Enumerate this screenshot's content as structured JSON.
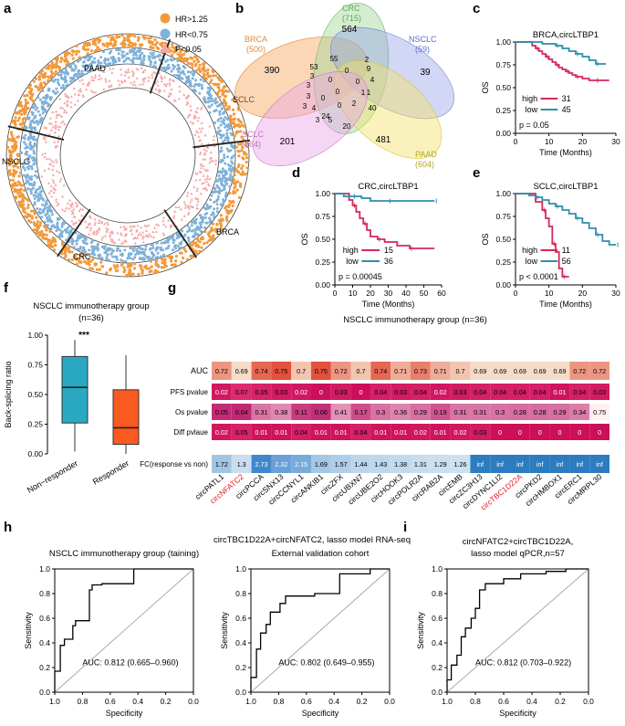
{
  "panels": {
    "a": "a",
    "b": "b",
    "c": "c",
    "d": "d",
    "e": "e",
    "f": "f",
    "g": "g",
    "h": "h",
    "i": "i"
  },
  "panel_a": {
    "legend": [
      "HR>1.25",
      "HR<0.75",
      "P<0.05"
    ],
    "colors": {
      "hr_high": "#f29a3b",
      "hr_low": "#7fb1d9",
      "p": "#f5a6a6"
    },
    "sectors": [
      "PAAD",
      "SCLC",
      "BRCA",
      "CRC",
      "NSCLC"
    ]
  },
  "panel_b": {
    "sets": [
      {
        "name": "BRCA",
        "n": "(500)",
        "color": "#f6a65e"
      },
      {
        "name": "CRC",
        "n": "(715)",
        "color": "#9fd79a"
      },
      {
        "name": "NSCLC",
        "n": "(59)",
        "color": "#7f8fe0"
      },
      {
        "name": "PAAD",
        "n": "(604)",
        "color": "#f3e36b"
      },
      {
        "name": "SCLC",
        "n": "(264)",
        "color": "#e8a3e6"
      }
    ],
    "counts": [
      "390",
      "564",
      "39",
      "481",
      "201",
      "53",
      "55",
      "2",
      "9",
      "0",
      "3",
      "3",
      "24",
      "20",
      "40",
      "3",
      "4",
      "3",
      "5",
      "1",
      "0",
      "0",
      "0",
      "1",
      "2",
      "0",
      "0",
      "3",
      "4"
    ]
  },
  "chart_data": [
    {
      "type": "line",
      "panel": "c",
      "title": "BRCA,circLTBP1",
      "xlabel": "Time (Months)",
      "ylabel": "OS",
      "xlim": [
        0,
        30
      ],
      "xticks": [
        0,
        10,
        20,
        30
      ],
      "ylim": [
        0,
        1
      ],
      "yticks": [
        "0.00",
        "0.25",
        "0.50",
        "0.75",
        "1.00"
      ],
      "pvalue": "p = 0.05",
      "series": [
        {
          "name": "high",
          "n": "31",
          "color": "#d62859",
          "x": [
            0,
            5,
            6,
            7,
            8,
            9,
            10,
            11,
            12,
            13,
            14,
            15,
            16,
            17,
            18,
            20,
            22,
            24,
            26,
            28
          ],
          "y": [
            1,
            0.96,
            0.93,
            0.9,
            0.87,
            0.84,
            0.81,
            0.78,
            0.75,
            0.72,
            0.7,
            0.68,
            0.66,
            0.64,
            0.62,
            0.6,
            0.58,
            0.58,
            0.58,
            0.58
          ]
        },
        {
          "name": "low",
          "n": "45",
          "color": "#2e8fa8",
          "x": [
            0,
            8,
            12,
            14,
            16,
            18,
            20,
            22,
            24,
            26,
            27
          ],
          "y": [
            1,
            0.98,
            0.96,
            0.93,
            0.9,
            0.87,
            0.84,
            0.8,
            0.76,
            0.76,
            0.76
          ]
        }
      ]
    },
    {
      "type": "line",
      "panel": "d",
      "title": "CRC,circLTBP1",
      "xlabel": "Time (Months)",
      "ylabel": "OS",
      "xlim": [
        0,
        60
      ],
      "xticks": [
        0,
        10,
        20,
        30,
        40,
        50,
        60
      ],
      "ylim": [
        0,
        1
      ],
      "yticks": [
        "0.00",
        "0.25",
        "0.50",
        "0.75",
        "1.00"
      ],
      "pvalue": "p = 0.00045",
      "series": [
        {
          "name": "high",
          "n": "15",
          "color": "#d62859",
          "x": [
            0,
            8,
            10,
            12,
            14,
            16,
            18,
            20,
            24,
            28,
            35,
            42,
            56
          ],
          "y": [
            1,
            0.93,
            0.87,
            0.8,
            0.73,
            0.67,
            0.6,
            0.53,
            0.5,
            0.47,
            0.43,
            0.4,
            0.4
          ]
        },
        {
          "name": "low",
          "n": "36",
          "color": "#2e8fa8",
          "x": [
            0,
            5,
            10,
            15,
            20,
            30,
            40,
            50,
            56
          ],
          "y": [
            1,
            0.97,
            0.97,
            0.95,
            0.92,
            0.92,
            0.92,
            0.92,
            0.92
          ]
        }
      ]
    },
    {
      "type": "line",
      "panel": "e",
      "title": "SCLC,circLTBP1",
      "xlabel": "Time (Months)",
      "ylabel": "OS",
      "xlim": [
        0,
        30
      ],
      "xticks": [
        0,
        10,
        20,
        30
      ],
      "ylim": [
        0,
        1
      ],
      "yticks": [
        "0.00",
        "0.25",
        "0.50",
        "0.75",
        "1.00"
      ],
      "pvalue": "p < 0.0001",
      "series": [
        {
          "name": "high",
          "n": "11",
          "color": "#d62859",
          "x": [
            0,
            6,
            8,
            9,
            10,
            11,
            12,
            13,
            14,
            16
          ],
          "y": [
            1,
            0.91,
            0.82,
            0.73,
            0.64,
            0.45,
            0.36,
            0.18,
            0.09,
            0.09
          ]
        },
        {
          "name": "low",
          "n": "56",
          "color": "#2e8fa8",
          "x": [
            0,
            4,
            6,
            8,
            10,
            12,
            14,
            16,
            18,
            20,
            22,
            24,
            26,
            28,
            30
          ],
          "y": [
            1,
            0.98,
            0.96,
            0.93,
            0.89,
            0.86,
            0.82,
            0.78,
            0.73,
            0.68,
            0.62,
            0.55,
            0.48,
            0.44,
            0.44
          ]
        }
      ]
    },
    {
      "type": "box",
      "panel": "f",
      "title": "NSCLC immunotherapy group",
      "subtitle": "(n=36)",
      "ylabel": "Back-splicing ratio",
      "significance": "***",
      "ylim": [
        0,
        1
      ],
      "yticks": [
        "0.00",
        "0.25",
        "0.50",
        "0.75",
        "1.00"
      ],
      "categories": [
        "Non−responder",
        "Responder"
      ],
      "boxes": [
        {
          "min": 0.02,
          "q1": 0.26,
          "median": 0.56,
          "q3": 0.82,
          "max": 0.96,
          "color": "#2aa8c2"
        },
        {
          "min": 0.0,
          "q1": 0.08,
          "median": 0.22,
          "q3": 0.54,
          "max": 0.83,
          "color": "#fa5a1f"
        }
      ]
    },
    {
      "type": "heatmap",
      "panel": "g",
      "title": "NSCLC immunotherapy group (n=36)",
      "rows": [
        "AUC",
        "PFS pvalue",
        "Os pvalue",
        "Diff pvlaue",
        "FC(response vs non)"
      ],
      "columns": [
        "circPATL1",
        "circNFATC2",
        "circPCCA",
        "circSNX13",
        "circCCNYL1",
        "circANKIB1",
        "circZFX",
        "circUBXN7",
        "circUBE2O2",
        "circHOOK3",
        "circPOLR2A",
        "circRAB2A",
        "circEMB",
        "circZC3H13",
        "circDYNC1LI2",
        "circTBC1D22A",
        "circPKD2",
        "circHMBOX1",
        "circERC1",
        "circMRPL30"
      ],
      "highlight_columns": [
        "circNFATC2",
        "circTBC1D22A"
      ],
      "cells": [
        [
          "0.72",
          "0.69",
          "0.74",
          "0.75",
          "0.7",
          "0.75",
          "0.72",
          "0.7",
          "0.74",
          "0.71",
          "0.73",
          "0.71",
          "0.7",
          "0.69",
          "0.69",
          "0.69",
          "0.69",
          "0.69",
          "0.72",
          "0.72"
        ],
        [
          "0.02",
          "0.07",
          "0.05",
          "0.03",
          "0.02",
          "0",
          "0.03",
          "0",
          "0.04",
          "0.03",
          "0.04",
          "0.02",
          "0.03",
          "0.04",
          "0.04",
          "0.04",
          "0.04",
          "0.01",
          "0.04",
          "0.03"
        ],
        [
          "0.05",
          "0.04",
          "0.31",
          "0.38",
          "0.11",
          "0.06",
          "0.41",
          "0.17",
          "0.3",
          "0.36",
          "0.29",
          "0.19",
          "0.31",
          "0.31",
          "0.3",
          "0.28",
          "0.28",
          "0.29",
          "0.34",
          "0.75"
        ],
        [
          "0.02",
          "0.05",
          "0.01",
          "0.01",
          "0.04",
          "0.01",
          "0.01",
          "0.04",
          "0.01",
          "0.01",
          "0.02",
          "0.01",
          "0.02",
          "0.03",
          "0",
          "0",
          "0",
          "0",
          "0",
          "0"
        ],
        [
          "1.72",
          "1.3",
          "2.73",
          "2.32",
          "2.15",
          "1.69",
          "1.57",
          "1.44",
          "1.43",
          "1.38",
          "1.31",
          "1.29",
          "1.26",
          "inf",
          "inf",
          "inf",
          "inf",
          "inf",
          "inf",
          "inf"
        ]
      ]
    },
    {
      "type": "line",
      "panel": "h1",
      "title": "NSCLC immunotherapy group (taining)",
      "xlabel": "Specificity",
      "ylabel": "Sensitivity",
      "auc": "AUC: 0.812 (0.665–0.960)",
      "xticks": [
        "1.0",
        "0.8",
        "0.6",
        "0.4",
        "0.2",
        "0.0"
      ],
      "yticks": [
        "0.0",
        "0.2",
        "0.4",
        "0.6",
        "0.8",
        "1.0"
      ],
      "series": [
        {
          "name": "ROC",
          "specificity": [
            1,
            1,
            0.96,
            0.96,
            0.93,
            0.93,
            0.87,
            0.87,
            0.85,
            0.85,
            0.75,
            0.75,
            0.73,
            0.73,
            0.73,
            0.66,
            0.66,
            0.43,
            0.43,
            0.14,
            0
          ],
          "sensitivity": [
            0,
            0.17,
            0.17,
            0.38,
            0.38,
            0.43,
            0.43,
            0.54,
            0.54,
            0.58,
            0.58,
            0.83,
            0.83,
            0.87,
            0.87,
            0.87,
            0.88,
            0.88,
            1,
            1,
            1
          ]
        }
      ]
    },
    {
      "type": "line",
      "panel": "h2",
      "title": "External validation cohort",
      "xlabel": "Specificity",
      "ylabel": "Sensitivity",
      "auc": "AUC: 0.802 (0.649–0.955)",
      "xticks": [
        "1.0",
        "0.8",
        "0.6",
        "0.4",
        "0.2",
        "0.0"
      ],
      "yticks": [
        "0.0",
        "0.2",
        "0.4",
        "0.6",
        "0.8",
        "1.0"
      ],
      "series": [
        {
          "name": "ROC",
          "specificity": [
            1,
            1,
            0.96,
            0.96,
            0.93,
            0.93,
            0.89,
            0.89,
            0.86,
            0.86,
            0.79,
            0.79,
            0.75,
            0.75,
            0.54,
            0.54,
            0.36,
            0.36,
            0.14,
            0.14,
            0
          ],
          "sensitivity": [
            0,
            0.12,
            0.12,
            0.35,
            0.35,
            0.48,
            0.48,
            0.55,
            0.55,
            0.65,
            0.65,
            0.72,
            0.72,
            0.78,
            0.78,
            0.8,
            0.8,
            0.96,
            0.96,
            1,
            1
          ]
        }
      ]
    },
    {
      "type": "line",
      "panel": "i",
      "title": "circNFATC2+circTBC1D22A,",
      "subtitle": "lasso model qPCR,n=57",
      "xlabel": "Specificity",
      "ylabel": "Sensitivity",
      "auc": "AUC: 0.812 (0.703–0.922)",
      "xticks": [
        "1.0",
        "0.8",
        "0.6",
        "0.4",
        "0.2",
        "0.0"
      ],
      "yticks": [
        "0.0",
        "0.2",
        "0.4",
        "0.6",
        "0.8",
        "1.0"
      ],
      "series": [
        {
          "name": "ROC",
          "specificity": [
            1,
            1,
            0.97,
            0.97,
            0.93,
            0.93,
            0.9,
            0.9,
            0.87,
            0.87,
            0.83,
            0.83,
            0.8,
            0.8,
            0.77,
            0.77,
            0.73,
            0.73,
            0.6,
            0.6,
            0.48,
            0.48,
            0.3,
            0.3,
            0.16,
            0.16,
            0
          ],
          "sensitivity": [
            0,
            0.1,
            0.1,
            0.22,
            0.22,
            0.3,
            0.3,
            0.45,
            0.45,
            0.52,
            0.52,
            0.6,
            0.6,
            0.68,
            0.68,
            0.83,
            0.83,
            0.88,
            0.88,
            0.92,
            0.92,
            0.96,
            0.96,
            0.98,
            0.98,
            1,
            1
          ]
        }
      ]
    }
  ],
  "panel_h": {
    "title": "circTBC1D22A+circNFATC2, lasso model RNA-seq"
  }
}
